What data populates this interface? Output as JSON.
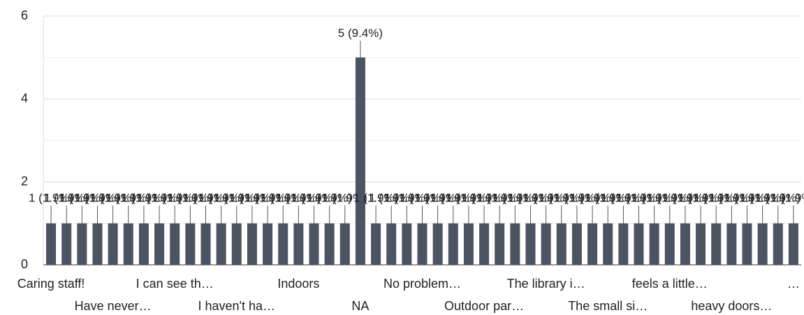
{
  "chart_data": {
    "type": "bar",
    "categories": [
      "Caring staff!",
      null,
      null,
      null,
      "Have never…",
      null,
      null,
      null,
      "I can see th…",
      null,
      null,
      null,
      "I haven't ha…",
      null,
      null,
      null,
      "Indoors",
      null,
      null,
      null,
      "NA",
      null,
      null,
      null,
      "No problem…",
      null,
      null,
      null,
      "Outdoor par…",
      null,
      null,
      null,
      "The library i…",
      null,
      null,
      null,
      "The small si…",
      null,
      null,
      null,
      "feels a little…",
      null,
      null,
      null,
      "heavy doors…",
      null,
      null,
      null,
      "…"
    ],
    "values": [
      1,
      1,
      1,
      1,
      1,
      1,
      1,
      1,
      1,
      1,
      1,
      1,
      1,
      1,
      1,
      1,
      1,
      1,
      1,
      1,
      5,
      1,
      1,
      1,
      1,
      1,
      1,
      1,
      1,
      1,
      1,
      1,
      1,
      1,
      1,
      1,
      1,
      1,
      1,
      1,
      1,
      1,
      1,
      1,
      1,
      1,
      1,
      1,
      1
    ],
    "value_labels": [
      "1 (1.9%)",
      "1 (1.9%)",
      "1 (1.9%)",
      "1 (1.9%)",
      "1 (1.9%)",
      "1 (1.9%)",
      "1 (1.9%)",
      "1 (1.9%)",
      "1 (1.9%)",
      "1 (1.9%)",
      "1 (1.9%)",
      "1 (1.9%)",
      "1 (1.9%)",
      "1 (1.9%)",
      "1 (1.9%)",
      "1 (1.9%)",
      "1 (1.9%)",
      "1 (1.9%)",
      "1 (1.9%)",
      "1 (1.9%)",
      "5 (9.4%)",
      "1 (1.9%)",
      "1 (1.9%)",
      "1 (1.9%)",
      "1 (1.9%)",
      "1 (1.9%)",
      "1 (1.9%)",
      "1 (1.9%)",
      "1 (1.9%)",
      "1 (1.9%)",
      "1 (1.9%)",
      "1 (1.9%)",
      "1 (1.9%)",
      "1 (1.9%)",
      "1 (1.9%)",
      "1 (1.9%)",
      "1 (1.9%)",
      "1 (1.9%)",
      "1 (1.9%)",
      "1 (1.9%)",
      "1 (1.9%)",
      "1 (1.9%)",
      "1 (1.9%)",
      "1 (1.9%)",
      "1 (1.9%)",
      "1 (1.9%)",
      "1 (1.9%)",
      "1 (1.9%)",
      "1 (1.9%)"
    ],
    "color": "#4a5462",
    "ylim": [
      0,
      6
    ],
    "yticks": [
      0,
      2,
      4,
      6
    ],
    "minor_yticks": [
      1,
      3,
      5
    ],
    "grid": true
  }
}
